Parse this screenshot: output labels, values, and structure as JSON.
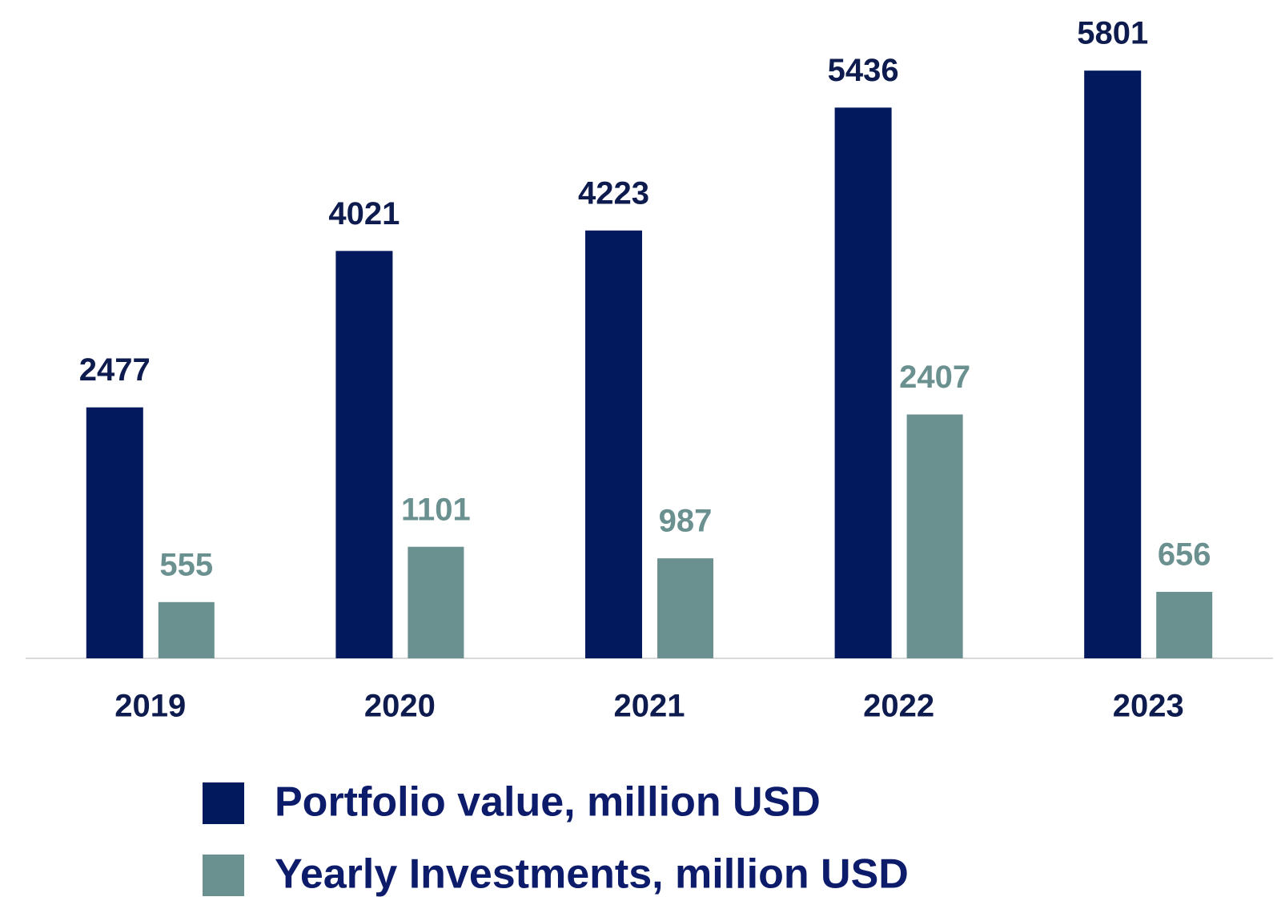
{
  "chart_data": {
    "type": "bar",
    "categories": [
      "2019",
      "2020",
      "2021",
      "2022",
      "2023"
    ],
    "series": [
      {
        "name": "Portfolio value, million USD",
        "color": "#03195e",
        "values": [
          2477,
          4021,
          4223,
          5436,
          5801
        ]
      },
      {
        "name": "Yearly Investments, million USD",
        "color": "#6a9090",
        "values": [
          555,
          1101,
          987,
          2407,
          656
        ]
      }
    ],
    "ylim": [
      0,
      6000
    ],
    "legend": "bottom"
  }
}
